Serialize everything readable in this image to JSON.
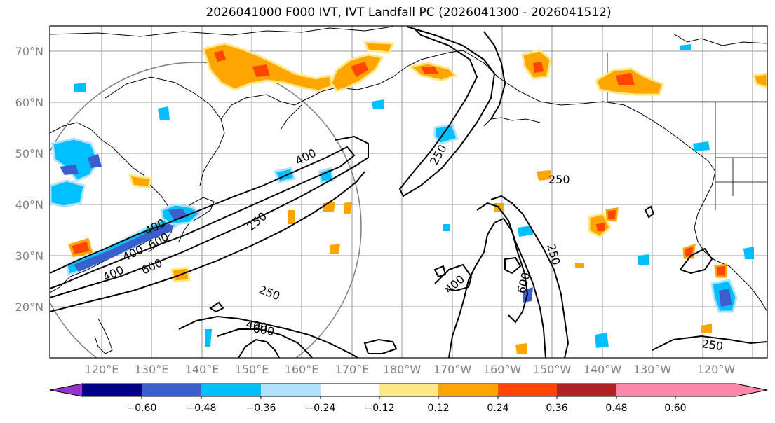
{
  "title": "2026041000 F000 IVT, IVT Landfall PC (2026041300 - 2026041512)",
  "lat_labels": [
    "70°N",
    "60°N",
    "50°N",
    "40°N",
    "30°N",
    "20°N"
  ],
  "lon_labels": [
    "120°E",
    "130°E",
    "140°E",
    "150°E",
    "160°E",
    "170°E",
    "180°W",
    "170°W",
    "160°W",
    "150°W",
    "140°W",
    "130°W",
    "120°W"
  ],
  "colorbar": {
    "ticks": [
      "−0.60",
      "−0.48",
      "−0.36",
      "−0.24",
      "−0.12",
      "0.12",
      "0.24",
      "0.36",
      "0.48",
      "0.60"
    ],
    "colors": [
      "#9932cc",
      "#00008b",
      "#3a5fcd",
      "#00bfff",
      "#b0e2ff",
      "#ffffff",
      "#ffe885",
      "#ffa500",
      "#ff4500",
      "#b22222",
      "#ff88aa"
    ]
  },
  "contour_labels": [
    "400",
    "250",
    "250",
    "250",
    "400",
    "600",
    "400",
    "600",
    "250",
    "400",
    "600",
    "400",
    "400",
    "600",
    "250",
    "250"
  ]
}
